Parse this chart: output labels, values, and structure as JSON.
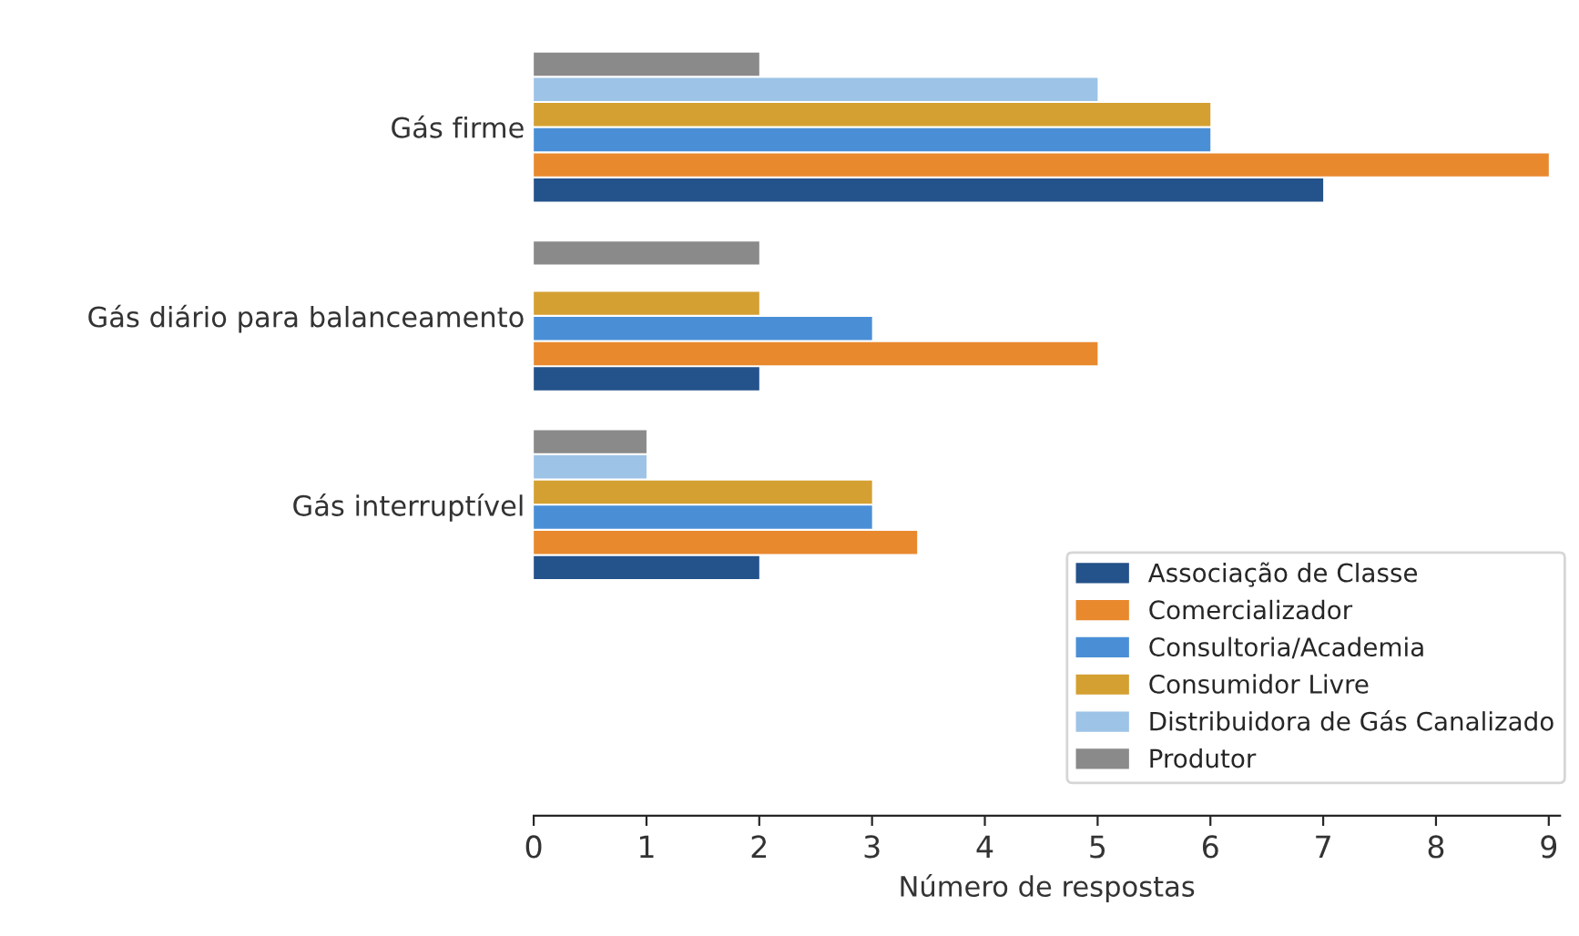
{
  "chart_data": {
    "type": "bar",
    "orientation": "horizontal",
    "xlabel": "Número de respostas",
    "categories": [
      "Gás firme",
      "Gás diário para balanceamento",
      "Gás interruptível"
    ],
    "series": [
      {
        "name": "Associação de Classe",
        "color": "#24528a",
        "values": [
          7,
          2,
          2
        ]
      },
      {
        "name": "Comercializador",
        "color": "#e8892e",
        "values": [
          9,
          5,
          3.4
        ]
      },
      {
        "name": "Consultoria/Academia",
        "color": "#4a8fd6",
        "values": [
          6,
          3,
          3
        ]
      },
      {
        "name": "Consumidor Livre",
        "color": "#d4a032",
        "values": [
          6,
          2,
          3
        ]
      },
      {
        "name": "Distribuidora de Gás Canalizado",
        "color": "#9dc3e6",
        "values": [
          5,
          0,
          1
        ]
      },
      {
        "name": "Produtor",
        "color": "#8a8a8a",
        "values": [
          2,
          2,
          1
        ]
      }
    ],
    "xlim": [
      0,
      9.1
    ],
    "xticks": [
      0,
      1,
      2,
      3,
      4,
      5,
      6,
      7,
      8,
      9
    ],
    "grid": false,
    "legend": "bottom right"
  }
}
